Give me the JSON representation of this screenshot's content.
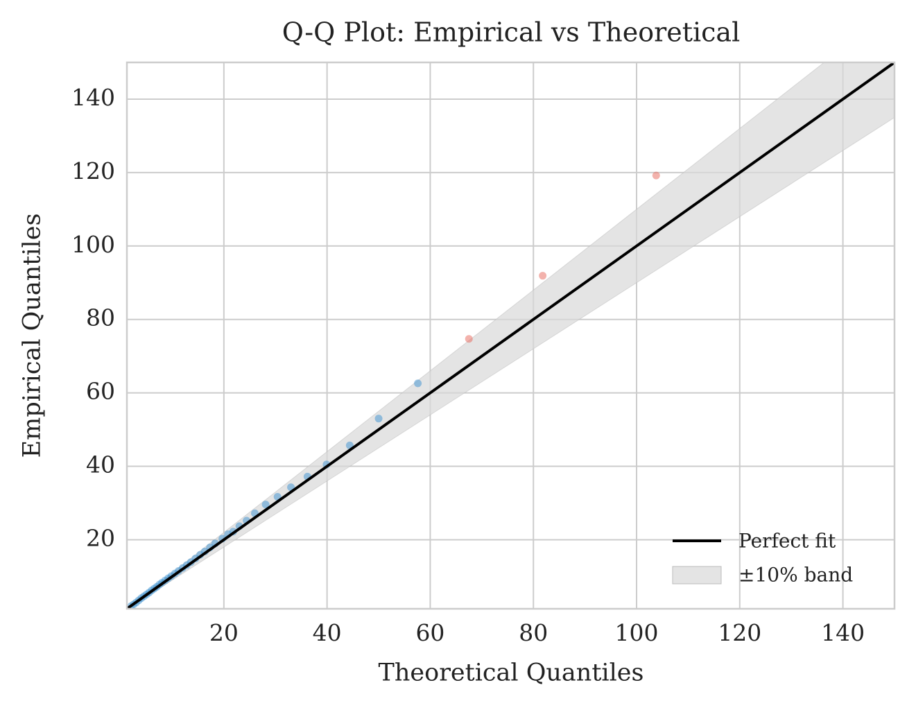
{
  "chart_data": {
    "type": "scatter",
    "title": "Q-Q Plot: Empirical vs Theoretical",
    "x_label": "Theoretical Quantiles",
    "y_label": "Empirical Quantiles",
    "xlim": [
      1.2,
      150
    ],
    "ylim": [
      1.2,
      150
    ],
    "xticks": [
      20,
      40,
      60,
      80,
      100,
      120,
      140
    ],
    "yticks": [
      20,
      40,
      60,
      80,
      100,
      120,
      140
    ],
    "grid": true,
    "legend": "lower right",
    "band": {
      "name": "±10% band",
      "color": "#d9d9d9",
      "x": [
        1.2,
        150
      ],
      "lower": [
        1.08,
        135
      ],
      "upper": [
        1.32,
        165
      ]
    },
    "lines": [
      {
        "name": "Perfect fit",
        "color": "#000000",
        "x": [
          1.2,
          150
        ],
        "values": [
          1.2,
          150
        ]
      }
    ],
    "series": [
      {
        "color": "#3a8fd0",
        "x": [
          2,
          2.5,
          3,
          3.5,
          4,
          4.5,
          5,
          5.5,
          6,
          6.5,
          7,
          7.5,
          8,
          8.6,
          9.2,
          9.8,
          10.5,
          11.2,
          12,
          12.8,
          13.6,
          14.5,
          15.4,
          16.3,
          17.3,
          18.3,
          19.7,
          20.8,
          21.8,
          23,
          24.4,
          26,
          28.1,
          30.4,
          33,
          36.2,
          39.9,
          44.4,
          50,
          57.6
        ],
        "values": [
          1.9,
          2.4,
          2.9,
          3.5,
          4.1,
          4.6,
          5.1,
          5.6,
          6.2,
          6.7,
          7.2,
          7.8,
          8.3,
          8.9,
          9.5,
          10.1,
          10.8,
          11.5,
          12.3,
          13.1,
          13.9,
          14.9,
          15.9,
          16.8,
          17.9,
          19,
          20.3,
          21.5,
          22.2,
          23.7,
          25.2,
          27.2,
          29.6,
          31.7,
          34.3,
          37.2,
          40.5,
          45.7,
          53,
          62.6
        ]
      },
      {
        "color": "#e8665a",
        "x": [
          67.5,
          81.8,
          103.8
        ],
        "values": [
          74.7,
          91.9,
          119.2
        ]
      }
    ]
  }
}
